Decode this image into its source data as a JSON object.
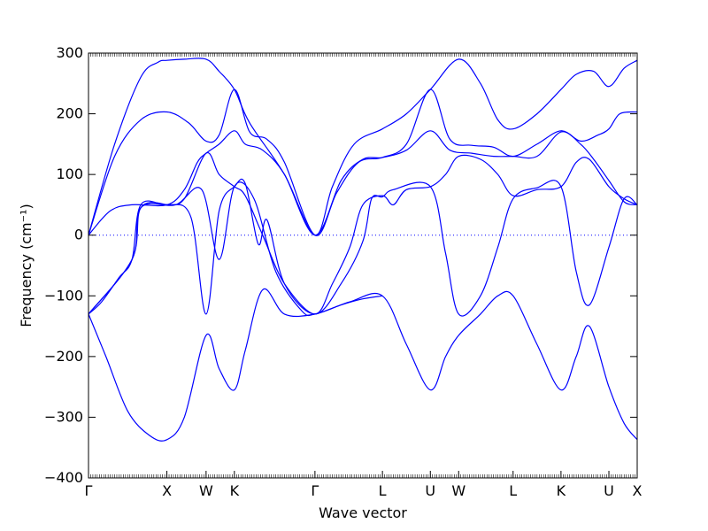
{
  "chart_data": {
    "type": "line",
    "title": "",
    "xlabel": "Wave vector",
    "ylabel": "Frequency (cm⁻¹)",
    "ylim": [
      -400,
      300
    ],
    "y_ticks": [
      -400,
      -300,
      -200,
      -100,
      0,
      100,
      200,
      300
    ],
    "grid": false,
    "legend": "none",
    "line_color": "#0000ff",
    "zero_line": {
      "y": 0,
      "style": "dotted",
      "color": "#0000ff"
    },
    "x_range": [
      0,
      12.6
    ],
    "x_ticks": [
      {
        "label": "Γ",
        "x": 0
      },
      {
        "label": "X",
        "x": 1.8
      },
      {
        "label": "W",
        "x": 2.7
      },
      {
        "label": "K",
        "x": 3.35
      },
      {
        "label": "Γ",
        "x": 5.2
      },
      {
        "label": "L",
        "x": 6.75
      },
      {
        "label": "U",
        "x": 7.85
      },
      {
        "label": "W",
        "x": 8.5
      },
      {
        "label": "L",
        "x": 9.75
      },
      {
        "label": "K",
        "x": 10.85
      },
      {
        "label": "U",
        "x": 11.95
      },
      {
        "label": "X",
        "x": 12.6
      }
    ],
    "series": [
      {
        "points": [
          [
            0,
            0
          ],
          [
            0.6,
            150
          ],
          [
            1.2,
            260
          ],
          [
            1.6,
            285
          ],
          [
            1.8,
            288
          ],
          [
            2.2,
            290
          ],
          [
            2.7,
            290
          ],
          [
            3.0,
            270
          ],
          [
            3.35,
            240
          ],
          [
            3.7,
            185
          ],
          [
            4.5,
            100
          ],
          [
            5.2,
            0
          ],
          [
            5.6,
            80
          ],
          [
            6.1,
            150
          ],
          [
            6.75,
            175
          ],
          [
            7.3,
            200
          ],
          [
            7.85,
            240
          ],
          [
            8.5,
            290
          ],
          [
            9.0,
            250
          ],
          [
            9.4,
            190
          ],
          [
            9.75,
            175
          ],
          [
            10.3,
            200
          ],
          [
            10.85,
            240
          ],
          [
            11.2,
            265
          ],
          [
            11.6,
            270
          ],
          [
            11.95,
            245
          ],
          [
            12.3,
            275
          ],
          [
            12.6,
            288
          ]
        ]
      },
      {
        "points": [
          [
            0,
            0
          ],
          [
            0.6,
            130
          ],
          [
            1.2,
            190
          ],
          [
            1.8,
            203
          ],
          [
            2.3,
            185
          ],
          [
            2.7,
            155
          ],
          [
            3.0,
            165
          ],
          [
            3.35,
            240
          ],
          [
            3.7,
            170
          ],
          [
            4.1,
            158
          ],
          [
            4.5,
            120
          ],
          [
            5.2,
            0
          ],
          [
            5.7,
            70
          ],
          [
            6.2,
            120
          ],
          [
            6.75,
            128
          ],
          [
            7.3,
            150
          ],
          [
            7.85,
            240
          ],
          [
            8.3,
            158
          ],
          [
            8.8,
            148
          ],
          [
            9.3,
            145
          ],
          [
            9.75,
            130
          ],
          [
            10.3,
            150
          ],
          [
            10.85,
            172
          ],
          [
            11.3,
            155
          ],
          [
            11.7,
            165
          ],
          [
            11.95,
            175
          ],
          [
            12.2,
            200
          ],
          [
            12.6,
            203
          ]
        ]
      },
      {
        "points": [
          [
            0,
            0
          ],
          [
            0.5,
            40
          ],
          [
            1.0,
            50
          ],
          [
            1.8,
            50
          ],
          [
            2.2,
            75
          ],
          [
            2.5,
            120
          ],
          [
            2.7,
            135
          ],
          [
            3.0,
            150
          ],
          [
            3.35,
            172
          ],
          [
            3.6,
            150
          ],
          [
            4.0,
            140
          ],
          [
            4.5,
            100
          ],
          [
            5.2,
            0
          ],
          [
            5.8,
            90
          ],
          [
            6.3,
            125
          ],
          [
            6.75,
            128
          ],
          [
            7.3,
            140
          ],
          [
            7.85,
            172
          ],
          [
            8.3,
            140
          ],
          [
            8.8,
            135
          ],
          [
            9.3,
            130
          ],
          [
            9.75,
            130
          ],
          [
            10.3,
            130
          ],
          [
            10.85,
            170
          ],
          [
            11.3,
            150
          ],
          [
            11.6,
            125
          ],
          [
            11.95,
            90
          ],
          [
            12.3,
            55
          ],
          [
            12.6,
            50
          ]
        ]
      },
      {
        "points": [
          [
            0,
            -130
          ],
          [
            0.3,
            -110
          ],
          [
            0.7,
            -70
          ],
          [
            1.0,
            -40
          ],
          [
            1.2,
            50
          ],
          [
            1.8,
            50
          ],
          [
            2.2,
            60
          ],
          [
            2.7,
            135
          ],
          [
            3.0,
            100
          ],
          [
            3.35,
            80
          ],
          [
            3.6,
            65
          ],
          [
            4.0,
            0
          ],
          [
            4.5,
            -80
          ],
          [
            5.2,
            -130
          ],
          [
            5.6,
            -80
          ],
          [
            6.0,
            -20
          ],
          [
            6.3,
            50
          ],
          [
            6.75,
            65
          ],
          [
            7.0,
            50
          ],
          [
            7.3,
            75
          ],
          [
            7.85,
            80
          ],
          [
            8.2,
            100
          ],
          [
            8.5,
            130
          ],
          [
            9.0,
            125
          ],
          [
            9.4,
            100
          ],
          [
            9.75,
            65
          ],
          [
            10.3,
            75
          ],
          [
            10.85,
            80
          ],
          [
            11.2,
            120
          ],
          [
            11.5,
            125
          ],
          [
            11.95,
            80
          ],
          [
            12.3,
            60
          ],
          [
            12.6,
            50
          ]
        ]
      },
      {
        "points": [
          [
            0,
            -130
          ],
          [
            1.0,
            -40
          ],
          [
            1.2,
            45
          ],
          [
            1.8,
            50
          ],
          [
            2.35,
            30
          ],
          [
            2.7,
            -130
          ],
          [
            3.0,
            40
          ],
          [
            3.35,
            80
          ],
          [
            3.6,
            85
          ],
          [
            3.9,
            -15
          ],
          [
            4.1,
            25
          ],
          [
            4.5,
            -80
          ],
          [
            5.2,
            -130
          ],
          [
            5.8,
            -80
          ],
          [
            6.3,
            -10
          ],
          [
            6.5,
            60
          ],
          [
            6.75,
            63
          ],
          [
            7.0,
            75
          ],
          [
            7.85,
            80
          ],
          [
            8.2,
            -30
          ],
          [
            8.5,
            -130
          ],
          [
            9.0,
            -100
          ],
          [
            9.4,
            -20
          ],
          [
            9.75,
            60
          ],
          [
            10.3,
            78
          ],
          [
            10.85,
            80
          ],
          [
            11.2,
            -60
          ],
          [
            11.5,
            -115
          ],
          [
            11.95,
            -20
          ],
          [
            12.3,
            60
          ],
          [
            12.6,
            50
          ]
        ]
      },
      {
        "points": [
          [
            0,
            -130
          ],
          [
            0.4,
            -200
          ],
          [
            0.9,
            -290
          ],
          [
            1.4,
            -330
          ],
          [
            1.8,
            -337
          ],
          [
            2.2,
            -300
          ],
          [
            2.7,
            -165
          ],
          [
            3.0,
            -220
          ],
          [
            3.35,
            -255
          ],
          [
            3.6,
            -190
          ],
          [
            4.0,
            -90
          ],
          [
            4.5,
            -130
          ],
          [
            5.2,
            -130
          ],
          [
            6.0,
            -110
          ],
          [
            6.75,
            -100
          ],
          [
            7.3,
            -180
          ],
          [
            7.85,
            -255
          ],
          [
            8.2,
            -200
          ],
          [
            8.5,
            -165
          ],
          [
            9.0,
            -130
          ],
          [
            9.4,
            -100
          ],
          [
            9.75,
            -100
          ],
          [
            10.3,
            -180
          ],
          [
            10.85,
            -255
          ],
          [
            11.2,
            -200
          ],
          [
            11.5,
            -150
          ],
          [
            11.95,
            -250
          ],
          [
            12.3,
            -310
          ],
          [
            12.6,
            -337
          ]
        ]
      },
      {
        "points": [
          [
            0,
            -130
          ],
          [
            1.0,
            -40
          ],
          [
            1.2,
            45
          ],
          [
            2.0,
            50
          ],
          [
            2.6,
            75
          ],
          [
            3.0,
            -40
          ],
          [
            3.35,
            80
          ],
          [
            3.8,
            60
          ],
          [
            4.3,
            -60
          ],
          [
            4.9,
            -125
          ],
          [
            5.2,
            -130
          ],
          [
            5.8,
            -115
          ],
          [
            6.3,
            -105
          ],
          [
            6.75,
            -100
          ]
        ]
      }
    ]
  }
}
